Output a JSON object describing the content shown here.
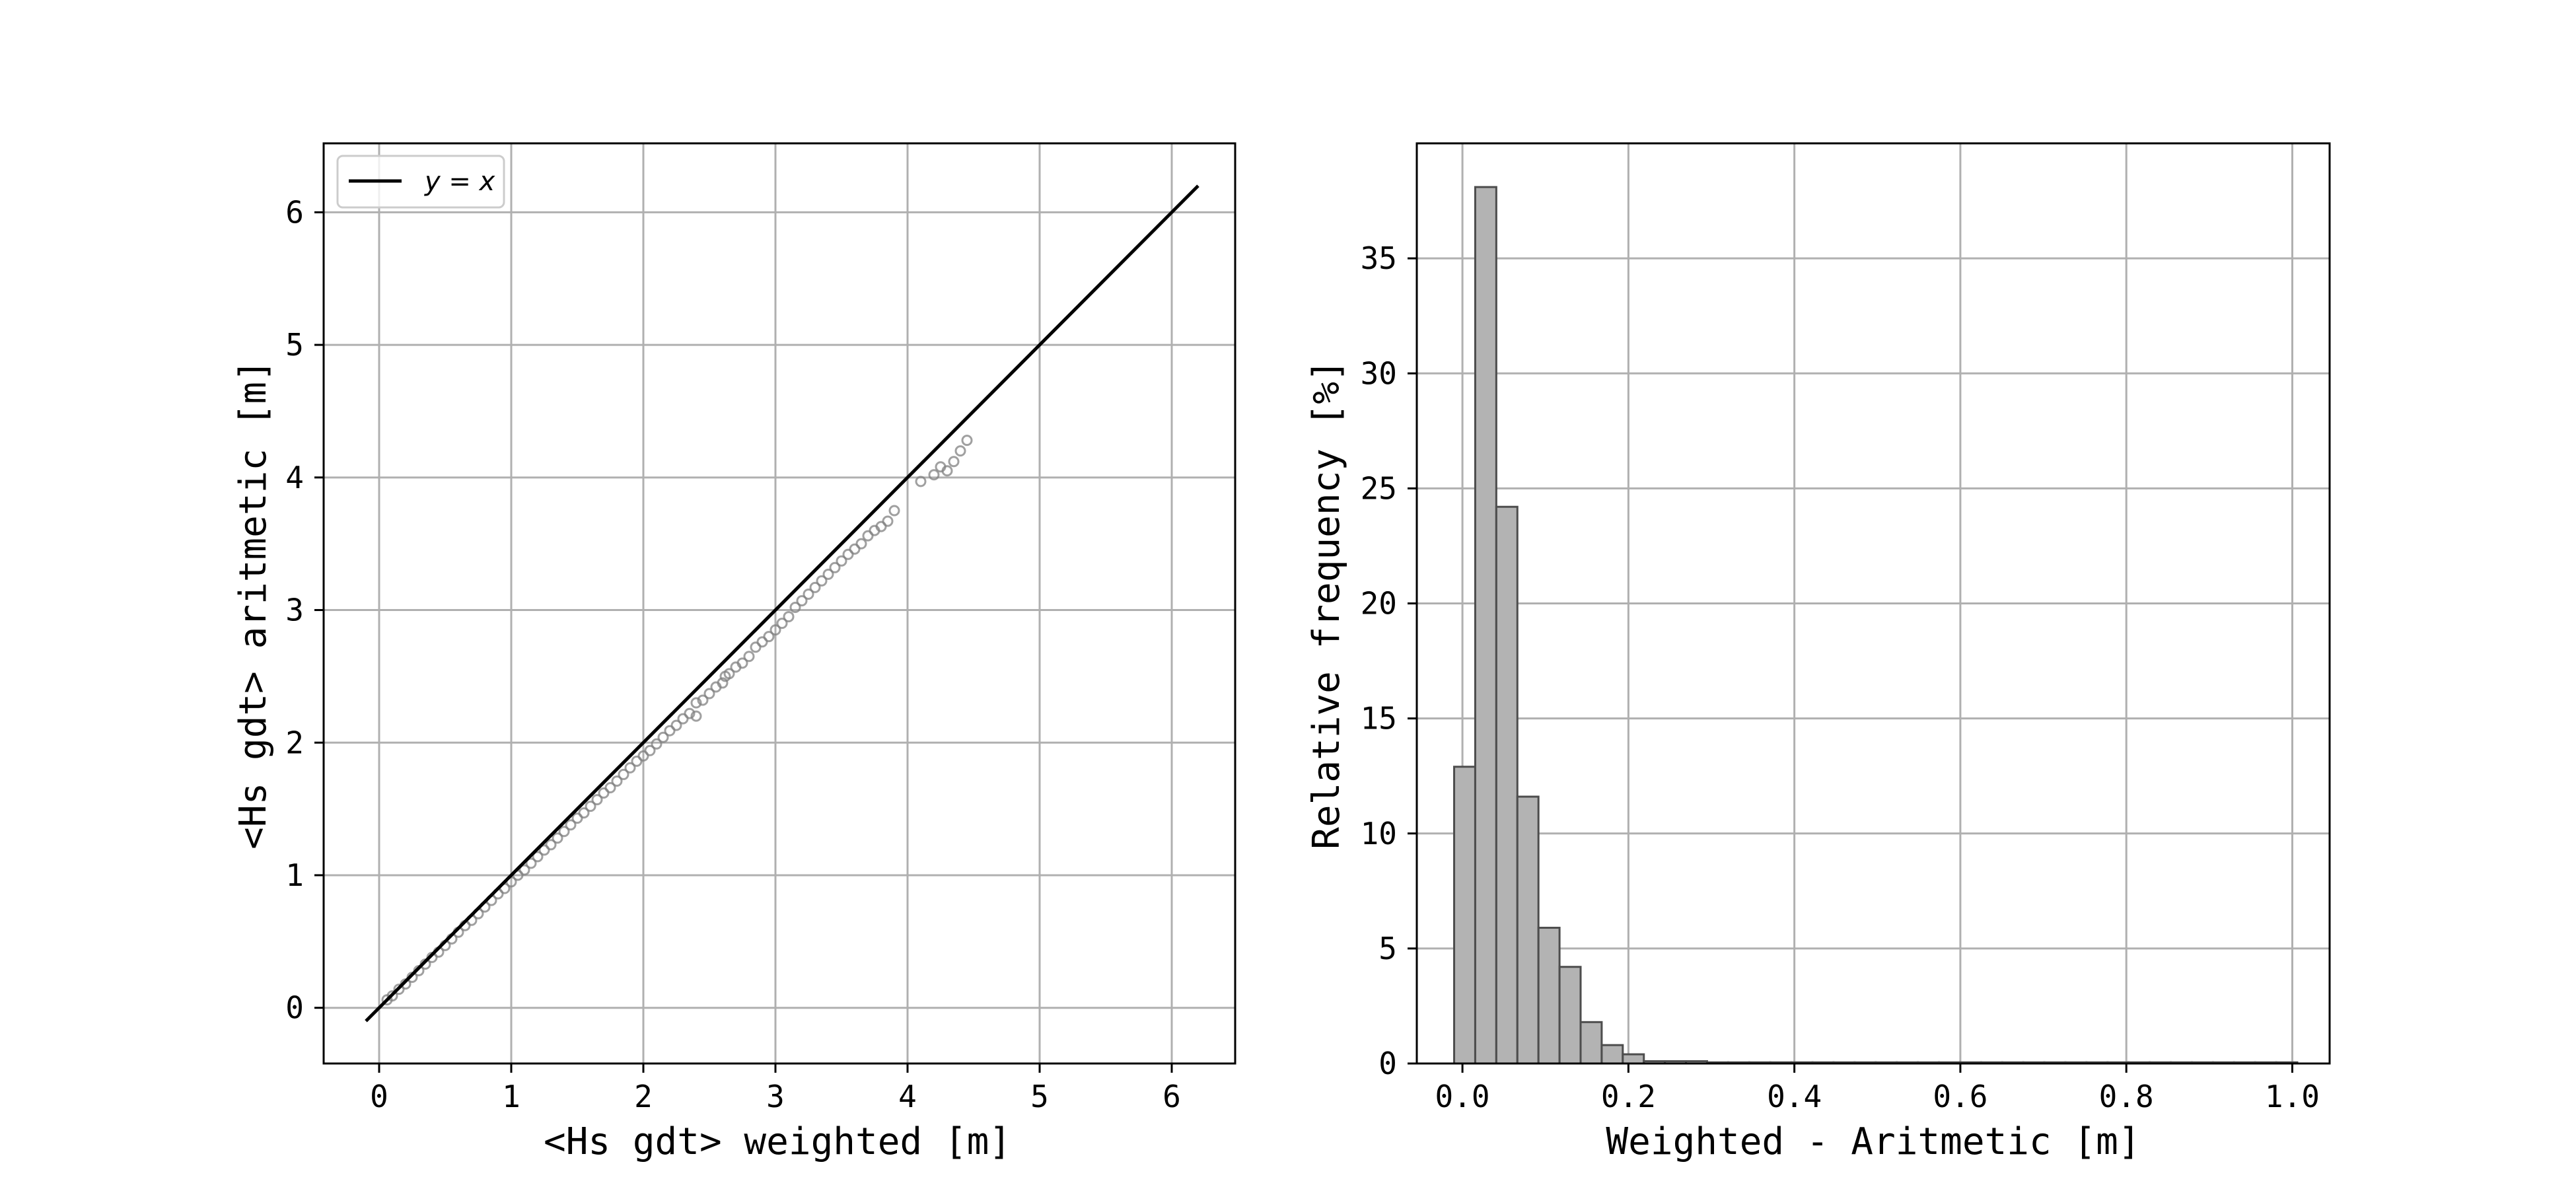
{
  "chart_data": [
    {
      "type": "scatter",
      "title": "",
      "xlabel": "<Hs gdt> weighted [m]",
      "ylabel": "<Hs gdt> aritmetic [m]",
      "xlim": [
        -0.42,
        6.48
      ],
      "ylim": [
        -0.42,
        6.52
      ],
      "xticks": [
        0,
        1,
        2,
        3,
        4,
        5,
        6
      ],
      "yticks": [
        0,
        1,
        2,
        3,
        4,
        5,
        6
      ],
      "xtick_labels": [
        "0",
        "1",
        "2",
        "3",
        "4",
        "5",
        "6"
      ],
      "ytick_labels": [
        "0",
        "1",
        "2",
        "3",
        "4",
        "5",
        "6"
      ],
      "grid": true,
      "legend": {
        "placement": "top-left",
        "entries": [
          "y = x"
        ]
      },
      "reference_line": {
        "name": "y = x",
        "from": -0.1,
        "to": 6.2,
        "color": "#000000"
      },
      "series": [
        {
          "marker": "open-circle",
          "color": "#808080",
          "points": [
            [
              0.06,
              0.06
            ],
            [
              0.1,
              0.09
            ],
            [
              0.15,
              0.14
            ],
            [
              0.2,
              0.18
            ],
            [
              0.25,
              0.23
            ],
            [
              0.3,
              0.28
            ],
            [
              0.35,
              0.33
            ],
            [
              0.4,
              0.38
            ],
            [
              0.45,
              0.42
            ],
            [
              0.5,
              0.47
            ],
            [
              0.55,
              0.52
            ],
            [
              0.6,
              0.57
            ],
            [
              0.65,
              0.62
            ],
            [
              0.7,
              0.66
            ],
            [
              0.75,
              0.71
            ],
            [
              0.8,
              0.76
            ],
            [
              0.85,
              0.81
            ],
            [
              0.9,
              0.86
            ],
            [
              0.95,
              0.9
            ],
            [
              1.0,
              0.95
            ],
            [
              1.05,
              1.0
            ],
            [
              1.1,
              1.04
            ],
            [
              1.15,
              1.09
            ],
            [
              1.2,
              1.14
            ],
            [
              1.25,
              1.19
            ],
            [
              1.3,
              1.23
            ],
            [
              1.35,
              1.28
            ],
            [
              1.4,
              1.33
            ],
            [
              1.45,
              1.38
            ],
            [
              1.5,
              1.43
            ],
            [
              1.55,
              1.47
            ],
            [
              1.6,
              1.52
            ],
            [
              1.65,
              1.57
            ],
            [
              1.7,
              1.62
            ],
            [
              1.75,
              1.66
            ],
            [
              1.8,
              1.71
            ],
            [
              1.85,
              1.76
            ],
            [
              1.9,
              1.81
            ],
            [
              1.95,
              1.86
            ],
            [
              2.0,
              1.9
            ],
            [
              2.05,
              1.94
            ],
            [
              2.1,
              1.99
            ],
            [
              2.15,
              2.04
            ],
            [
              2.2,
              2.09
            ],
            [
              2.25,
              2.13
            ],
            [
              2.3,
              2.18
            ],
            [
              2.35,
              2.22
            ],
            [
              2.4,
              2.2
            ],
            [
              2.4,
              2.3
            ],
            [
              2.45,
              2.32
            ],
            [
              2.5,
              2.37
            ],
            [
              2.55,
              2.42
            ],
            [
              2.6,
              2.45
            ],
            [
              2.62,
              2.5
            ],
            [
              2.65,
              2.52
            ],
            [
              2.7,
              2.57
            ],
            [
              2.75,
              2.6
            ],
            [
              2.8,
              2.65
            ],
            [
              2.85,
              2.72
            ],
            [
              2.9,
              2.76
            ],
            [
              2.95,
              2.8
            ],
            [
              3.0,
              2.85
            ],
            [
              3.05,
              2.9
            ],
            [
              3.1,
              2.95
            ],
            [
              3.15,
              3.02
            ],
            [
              3.2,
              3.07
            ],
            [
              3.25,
              3.12
            ],
            [
              3.3,
              3.17
            ],
            [
              3.35,
              3.22
            ],
            [
              3.4,
              3.27
            ],
            [
              3.45,
              3.32
            ],
            [
              3.5,
              3.37
            ],
            [
              3.55,
              3.42
            ],
            [
              3.6,
              3.46
            ],
            [
              3.65,
              3.5
            ],
            [
              3.7,
              3.56
            ],
            [
              3.75,
              3.6
            ],
            [
              3.8,
              3.63
            ],
            [
              3.85,
              3.67
            ],
            [
              3.9,
              3.75
            ],
            [
              4.1,
              3.97
            ],
            [
              4.2,
              4.02
            ],
            [
              4.25,
              4.08
            ],
            [
              4.3,
              4.05
            ],
            [
              4.35,
              4.12
            ],
            [
              4.4,
              4.2
            ],
            [
              4.45,
              4.28
            ]
          ]
        }
      ]
    },
    {
      "type": "bar",
      "title": "",
      "xlabel": "Weighted - Aritmetic [m]",
      "ylabel": "Relative frequency [%]",
      "xlim": [
        -0.055,
        1.045
      ],
      "ylim": [
        0,
        40
      ],
      "xticks": [
        0.0,
        0.2,
        0.4,
        0.6,
        0.8,
        1.0
      ],
      "yticks": [
        0,
        5,
        10,
        15,
        20,
        25,
        30,
        35
      ],
      "xtick_labels": [
        "0.0",
        "0.2",
        "0.4",
        "0.6",
        "0.8",
        "1.0"
      ],
      "ytick_labels": [
        "0",
        "5",
        "10",
        "15",
        "20",
        "25",
        "30",
        "35"
      ],
      "grid": true,
      "bin_start": -0.01,
      "bin_width": 0.0254,
      "values": [
        12.9,
        38.1,
        24.2,
        11.6,
        5.9,
        4.2,
        1.8,
        0.8,
        0.4,
        0.1,
        0.1,
        0.1,
        0.05,
        0.05,
        0.05,
        0.05,
        0.05,
        0.05,
        0.05,
        0.05,
        0.05,
        0.05,
        0.05,
        0.05,
        0.05,
        0.05,
        0.05,
        0.05,
        0.05,
        0.05,
        0.05,
        0.05,
        0.05,
        0.05,
        0.05,
        0.05,
        0.05,
        0.05,
        0.05,
        0.05
      ],
      "bar_color": "#b3b3b3",
      "edge_color": "#4d4d4d"
    }
  ]
}
